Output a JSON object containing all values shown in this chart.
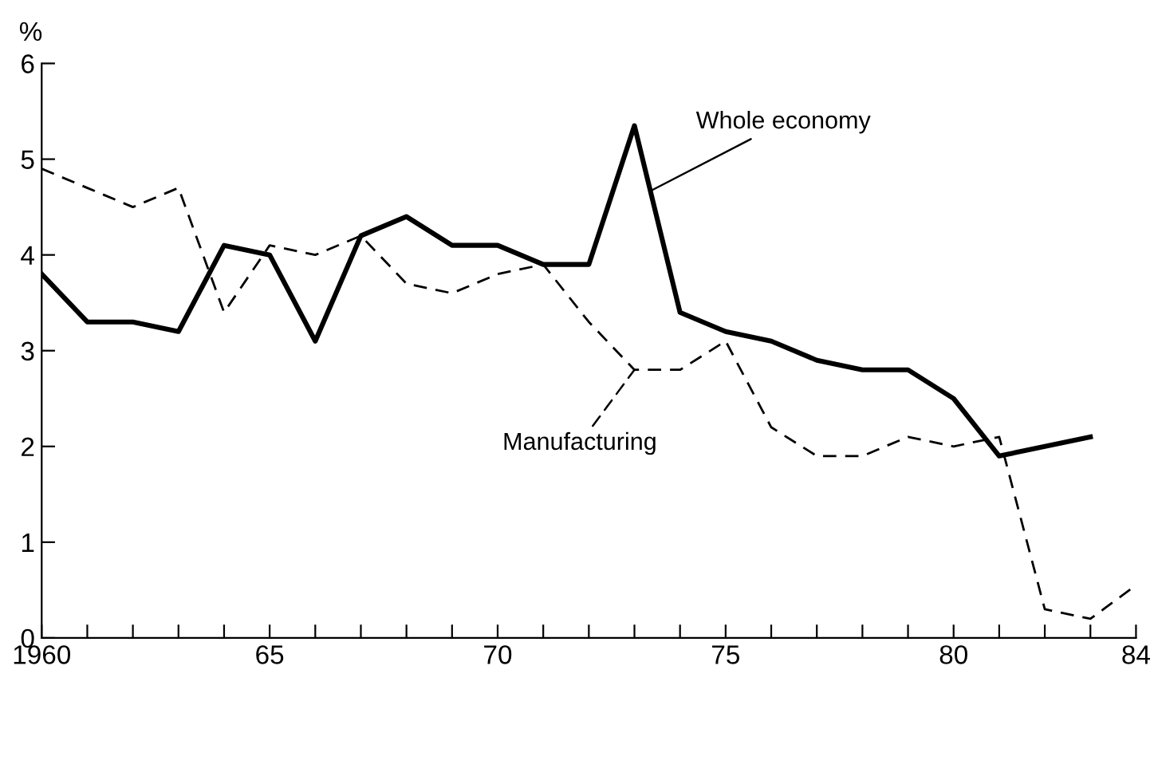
{
  "chart_data": {
    "type": "line",
    "ylabel": "%",
    "x": [
      1960,
      1961,
      1962,
      1963,
      1964,
      1965,
      1966,
      1967,
      1968,
      1969,
      1970,
      1971,
      1972,
      1973,
      1974,
      1975,
      1976,
      1977,
      1978,
      1979,
      1980,
      1981,
      1982,
      1983,
      1984
    ],
    "series": [
      {
        "name": "Whole economy",
        "color": "#000000",
        "line_style": "solid",
        "values": [
          3.8,
          3.3,
          3.3,
          3.2,
          4.1,
          4.0,
          3.1,
          4.2,
          4.4,
          4.1,
          4.1,
          3.9,
          3.9,
          5.35,
          3.4,
          3.2,
          3.1,
          2.9,
          2.8,
          2.8,
          2.5,
          1.9,
          null,
          2.1,
          null
        ]
      },
      {
        "name": "Manufacturing",
        "color": "#000000",
        "line_style": "dashed",
        "values": [
          4.9,
          4.7,
          4.5,
          4.7,
          3.4,
          4.1,
          4.0,
          4.2,
          3.7,
          3.6,
          3.8,
          3.9,
          3.3,
          2.8,
          2.8,
          3.1,
          2.2,
          1.9,
          1.9,
          2.1,
          2.0,
          2.1,
          0.3,
          0.2,
          0.55
        ]
      }
    ],
    "xlim": [
      1960,
      1984
    ],
    "xticks": [
      {
        "value": 1960,
        "label": "1960"
      },
      {
        "value": 1961,
        "label": null
      },
      {
        "value": 1962,
        "label": null
      },
      {
        "value": 1963,
        "label": null
      },
      {
        "value": 1964,
        "label": null
      },
      {
        "value": 1965,
        "label": "65"
      },
      {
        "value": 1966,
        "label": null
      },
      {
        "value": 1967,
        "label": null
      },
      {
        "value": 1968,
        "label": null
      },
      {
        "value": 1969,
        "label": null
      },
      {
        "value": 1970,
        "label": "70"
      },
      {
        "value": 1971,
        "label": null
      },
      {
        "value": 1972,
        "label": null
      },
      {
        "value": 1973,
        "label": null
      },
      {
        "value": 1974,
        "label": null
      },
      {
        "value": 1975,
        "label": "75"
      },
      {
        "value": 1976,
        "label": null
      },
      {
        "value": 1977,
        "label": null
      },
      {
        "value": 1978,
        "label": null
      },
      {
        "value": 1979,
        "label": null
      },
      {
        "value": 1980,
        "label": "80"
      },
      {
        "value": 1981,
        "label": null
      },
      {
        "value": 1982,
        "label": null
      },
      {
        "value": 1983,
        "label": null
      },
      {
        "value": 1984,
        "label": "84"
      }
    ],
    "ylim": [
      0,
      6
    ],
    "yticks": [
      0,
      1,
      2,
      3,
      4,
      5,
      6
    ],
    "grid": false,
    "legend": "center",
    "marker": "none"
  }
}
